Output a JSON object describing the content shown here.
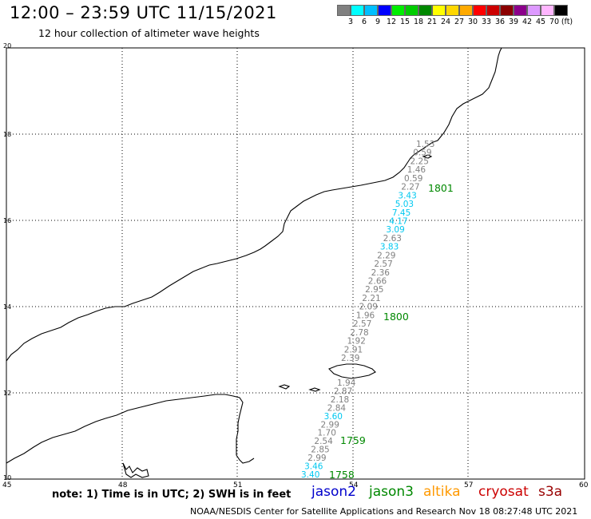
{
  "title": "12:00 – 23:59 UTC 11/15/2021",
  "subtitle": "12 hour collection of altimeter wave heights",
  "scale": {
    "unit": "(ft)",
    "labels": [
      "3",
      "6",
      "9",
      "12",
      "15",
      "18",
      "21",
      "24",
      "27",
      "30",
      "33",
      "36",
      "39",
      "42",
      "45",
      "70"
    ],
    "colors": [
      "#808080",
      "#00ffff",
      "#00bfff",
      "#0000ff",
      "#00ee00",
      "#00cc00",
      "#008800",
      "#ffff00",
      "#ffd700",
      "#ffaa00",
      "#ff0000",
      "#cc0000",
      "#8b0000",
      "#8b008b",
      "#dd99ff",
      "#ffb6ff",
      "#000000"
    ]
  },
  "axes": {
    "lat_labels": [
      "20",
      "18",
      "16",
      "14",
      "12",
      "10"
    ],
    "lon_labels": [
      "45",
      "48",
      "51",
      "54",
      "57",
      "60"
    ]
  },
  "heights": [
    {
      "v": "1.53",
      "c": "#808080"
    },
    {
      "v": "0.59",
      "c": "#808080"
    },
    {
      "v": "2.25",
      "c": "#808080"
    },
    {
      "v": "1.46",
      "c": "#808080"
    },
    {
      "v": "0.59",
      "c": "#808080"
    },
    {
      "v": "2.27",
      "c": "#808080"
    },
    {
      "v": "3.43",
      "c": "#00c8f0"
    },
    {
      "v": "5.03",
      "c": "#00c8f0"
    },
    {
      "v": "7.45",
      "c": "#00c8f0"
    },
    {
      "v": "4.17",
      "c": "#00c8f0"
    },
    {
      "v": "3.09",
      "c": "#00c8f0"
    },
    {
      "v": "2.63",
      "c": "#808080"
    },
    {
      "v": "3.83",
      "c": "#00c8f0"
    },
    {
      "v": "2.29",
      "c": "#808080"
    },
    {
      "v": "2.57",
      "c": "#808080"
    },
    {
      "v": "2.36",
      "c": "#808080"
    },
    {
      "v": "2.66",
      "c": "#808080"
    },
    {
      "v": "2.95",
      "c": "#808080"
    },
    {
      "v": "2.21",
      "c": "#808080"
    },
    {
      "v": "2.09",
      "c": "#808080"
    },
    {
      "v": "1.96",
      "c": "#808080"
    },
    {
      "v": "2.57",
      "c": "#808080"
    },
    {
      "v": "2.78",
      "c": "#808080"
    },
    {
      "v": "1.92",
      "c": "#808080"
    },
    {
      "v": "2.91",
      "c": "#808080"
    },
    {
      "v": "2.39",
      "c": "#808080"
    },
    {
      "v": "1.94",
      "c": "#808080"
    },
    {
      "v": "2.87",
      "c": "#808080"
    },
    {
      "v": "2.18",
      "c": "#808080"
    },
    {
      "v": "2.84",
      "c": "#808080"
    },
    {
      "v": "3.60",
      "c": "#00c8f0"
    },
    {
      "v": "2.99",
      "c": "#808080"
    },
    {
      "v": "1.70",
      "c": "#808080"
    },
    {
      "v": "2.54",
      "c": "#808080"
    },
    {
      "v": "2.85",
      "c": "#808080"
    },
    {
      "v": "2.99",
      "c": "#808080"
    },
    {
      "v": "3.46",
      "c": "#00c8f0"
    },
    {
      "v": "3.40",
      "c": "#00c8f0"
    }
  ],
  "times": [
    "1801",
    "1800",
    "1759",
    "1758"
  ],
  "time_color": "#008800",
  "note": "note:  1) Time is in UTC; 2) SWH is in feet",
  "satellites": [
    {
      "name": "jason2",
      "color": "#0000cc"
    },
    {
      "name": "jason3",
      "color": "#008800"
    },
    {
      "name": "altika",
      "color": "#ff9900"
    },
    {
      "name": "cryosat",
      "color": "#cc0000"
    },
    {
      "name": "s3a",
      "color": "#990000"
    }
  ],
  "footer": "NOAA/NESDIS Center for Satellite Applications and Research    Nov 18 08:27:48 UTC 2021"
}
